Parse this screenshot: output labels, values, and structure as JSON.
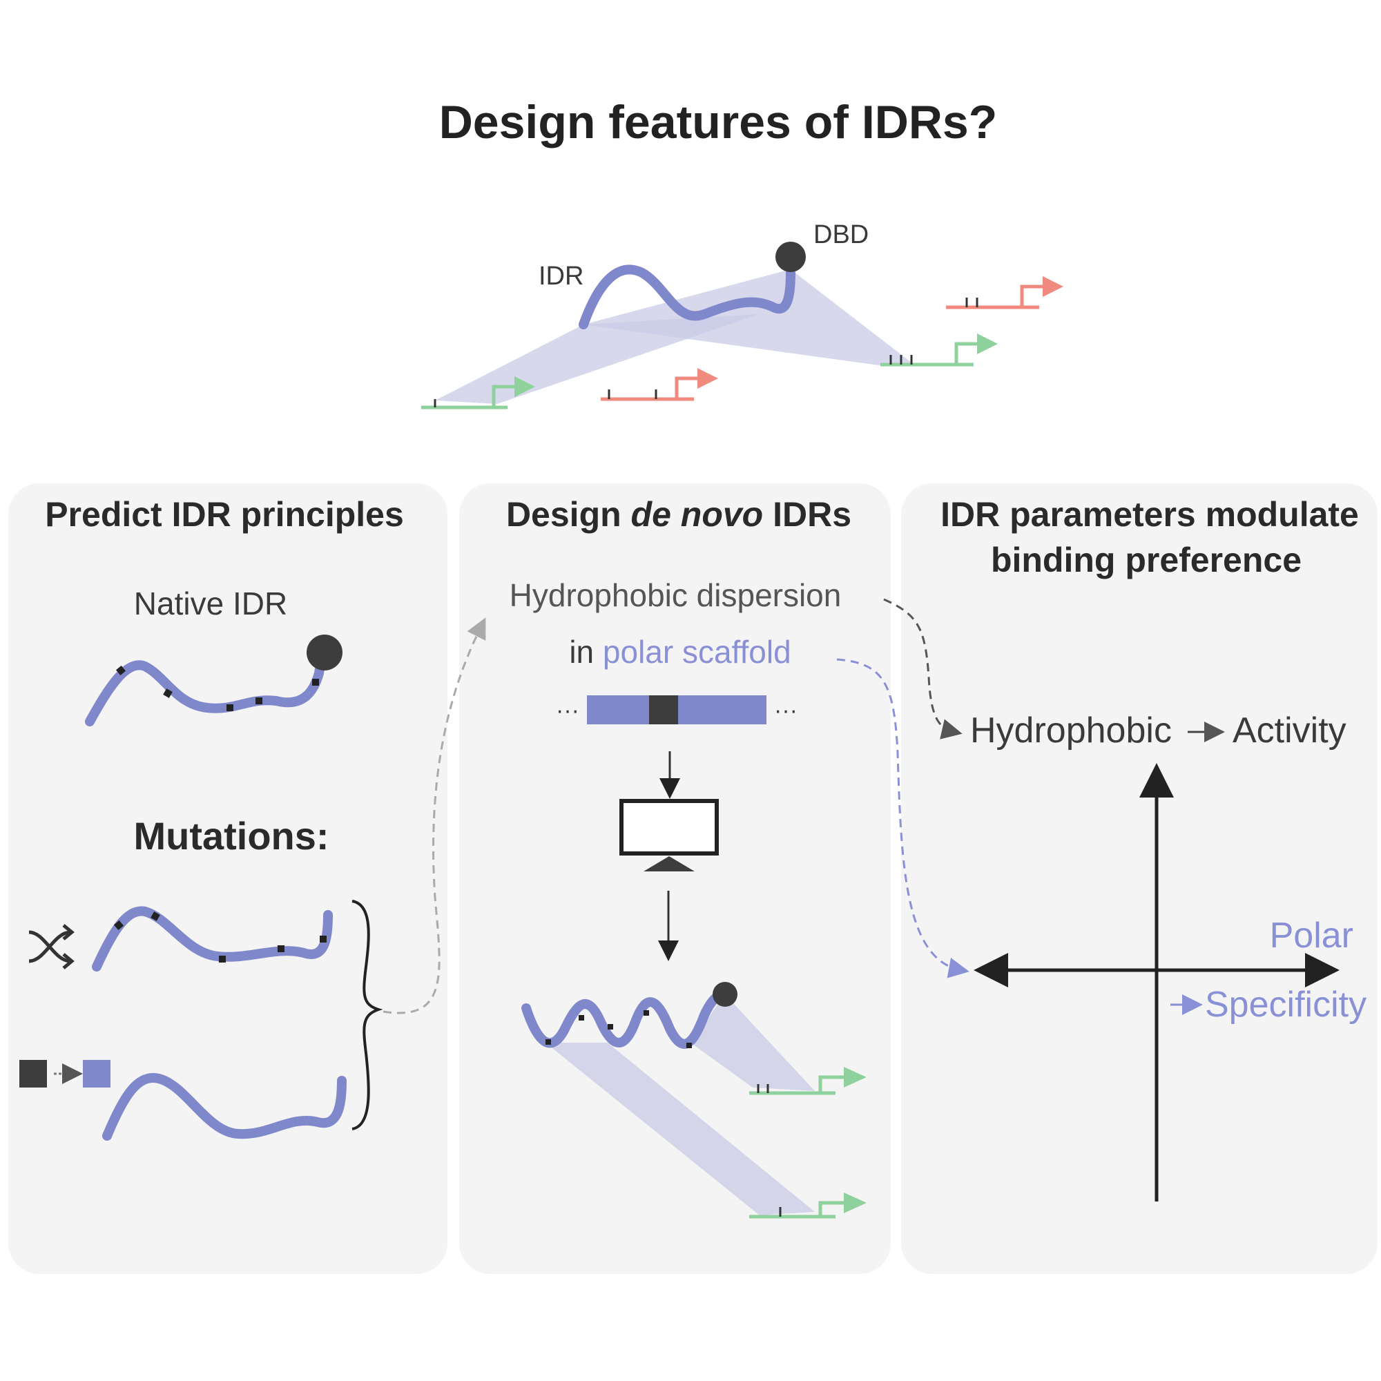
{
  "title": "Design features of IDRs?",
  "top": {
    "idr_label": "IDR",
    "dbd_label": "DBD"
  },
  "panels": {
    "predict": {
      "title": "Predict IDR principles",
      "native_label": "Native IDR",
      "mutations_label": "Mutations:"
    },
    "design": {
      "title_prefix": "Design ",
      "title_italic": "de novo",
      "title_suffix": " IDRs",
      "line1": "Hydrophobic dispersion",
      "line2_prefix": "in ",
      "line2_colored": "polar scaffold",
      "dots_left": "···",
      "dots_right": "···"
    },
    "params": {
      "title_line1": "IDR parameters modulate",
      "title_line2": "binding preference",
      "hydrophobic_label": "Hydrophobic",
      "activity_label": "Activity",
      "polar_label": "Polar",
      "specificity_label": "Specificity"
    }
  },
  "colors": {
    "idr_blue": "#8088cc",
    "shade": "#c9cbe6",
    "green": "#8fd19c",
    "red": "#f08a7e",
    "panel_bg": "#f4f4f4",
    "dark": "#3d3d3d"
  }
}
